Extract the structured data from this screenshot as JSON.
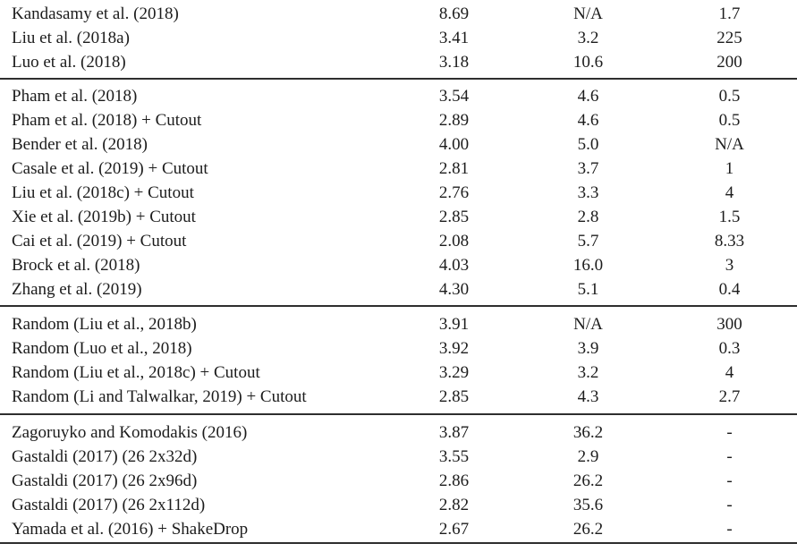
{
  "colors": {
    "background": "#ffffff",
    "text": "#1c1c1c",
    "rule": "#2e2e2e"
  },
  "table": {
    "sections": [
      {
        "rows": [
          {
            "method": "Kandasamy et al. (2018)",
            "values": [
              "8.69",
              "N/A",
              "1.7"
            ]
          },
          {
            "method": "Liu et al. (2018a)",
            "values": [
              "3.41",
              "3.2",
              "225"
            ]
          },
          {
            "method": "Luo et al. (2018)",
            "values": [
              "3.18",
              "10.6",
              "200"
            ]
          }
        ]
      },
      {
        "rows": [
          {
            "method": "Pham et al. (2018)",
            "values": [
              "3.54",
              "4.6",
              "0.5"
            ]
          },
          {
            "method": "Pham et al. (2018) + Cutout",
            "values": [
              "2.89",
              "4.6",
              "0.5"
            ]
          },
          {
            "method": "Bender et al. (2018)",
            "values": [
              "4.00",
              "5.0",
              "N/A"
            ]
          },
          {
            "method": "Casale et al. (2019) + Cutout",
            "values": [
              "2.81",
              "3.7",
              "1"
            ]
          },
          {
            "method": "Liu et al. (2018c) + Cutout",
            "values": [
              "2.76",
              "3.3",
              "4"
            ]
          },
          {
            "method": "Xie et al. (2019b) + Cutout",
            "values": [
              "2.85",
              "2.8",
              "1.5"
            ]
          },
          {
            "method": "Cai et al. (2019) + Cutout",
            "values": [
              "2.08",
              "5.7",
              "8.33"
            ]
          },
          {
            "method": "Brock et al. (2018)",
            "values": [
              "4.03",
              "16.0",
              "3"
            ]
          },
          {
            "method": "Zhang et al. (2019)",
            "values": [
              "4.30",
              "5.1",
              "0.4"
            ]
          }
        ]
      },
      {
        "rows": [
          {
            "method": "Random (Liu et al., 2018b)",
            "values": [
              "3.91",
              "N/A",
              "300"
            ]
          },
          {
            "method": "Random (Luo et al., 2018)",
            "values": [
              "3.92",
              "3.9",
              "0.3"
            ]
          },
          {
            "method": "Random (Liu et al., 2018c) + Cutout",
            "values": [
              "3.29",
              "3.2",
              "4"
            ]
          },
          {
            "method": "Random (Li and Talwalkar, 2019) + Cutout",
            "values": [
              "2.85",
              "4.3",
              "2.7"
            ]
          }
        ]
      },
      {
        "rows": [
          {
            "method": "Zagoruyko and Komodakis (2016)",
            "values": [
              "3.87",
              "36.2",
              "-"
            ]
          },
          {
            "method": "Gastaldi (2017) (26 2x32d)",
            "values": [
              "3.55",
              "2.9",
              "-"
            ]
          },
          {
            "method": "Gastaldi (2017) (26 2x96d)",
            "values": [
              "2.86",
              "26.2",
              "-"
            ]
          },
          {
            "method": "Gastaldi (2017) (26 2x112d)",
            "values": [
              "2.82",
              "35.6",
              "-"
            ]
          },
          {
            "method": "Yamada et al. (2016) + ShakeDrop",
            "values": [
              "2.67",
              "26.2",
              "-"
            ]
          }
        ]
      }
    ]
  }
}
